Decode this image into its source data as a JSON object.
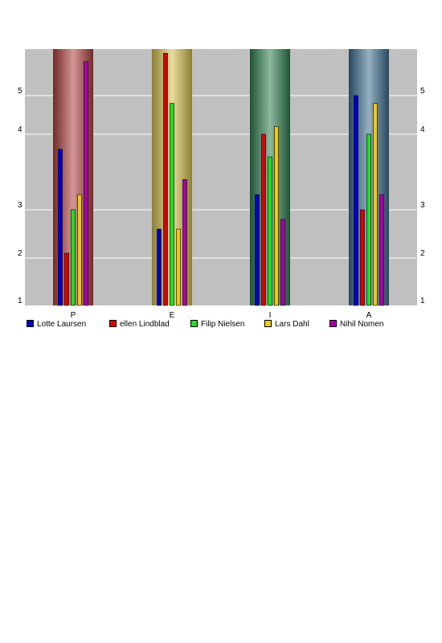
{
  "chart_data": {
    "type": "bar",
    "title": "",
    "xlabel": "",
    "ylabel": "",
    "categories": [
      "P",
      "E",
      "I",
      "A"
    ],
    "yticks": [
      1,
      2,
      3,
      4,
      5
    ],
    "ylim": [
      1,
      6.1
    ],
    "column_colors": [
      "#b0403e",
      "#d6c24e",
      "#2f8050",
      "#3f6f90"
    ],
    "grid": true,
    "legend_position": "bottom",
    "series": [
      {
        "name": "Lotte Laursen",
        "color": "#0000cc",
        "values": [
          3.8,
          2.6,
          3.2,
          5.0
        ]
      },
      {
        "name": "ellen Lindblad",
        "color": "#dd0000",
        "values": [
          2.1,
          6.0,
          4.0,
          3.0
        ]
      },
      {
        "name": "Filip Nielsen",
        "color": "#22dd22",
        "values": [
          3.0,
          4.8,
          3.7,
          4.0
        ]
      },
      {
        "name": "Lars Dahl",
        "color": "#f0c814",
        "values": [
          3.2,
          2.6,
          4.2,
          4.8
        ]
      },
      {
        "name": "Nihil Nomen",
        "color": "#aa00aa",
        "values": [
          5.8,
          3.4,
          2.8,
          3.2
        ]
      }
    ]
  }
}
